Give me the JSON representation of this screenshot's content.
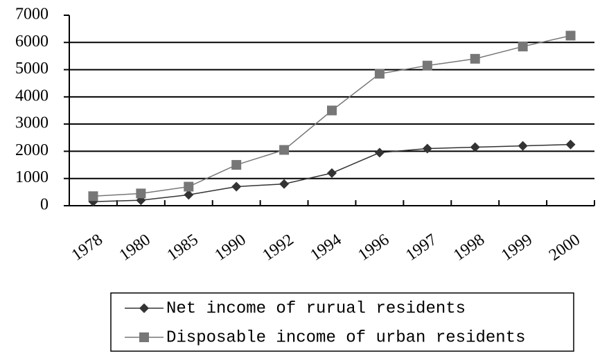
{
  "chart_data": {
    "type": "line",
    "categories": [
      "1978",
      "1980",
      "1985",
      "1990",
      "1992",
      "1994",
      "1996",
      "1997",
      "1998",
      "1999",
      "2000"
    ],
    "series": [
      {
        "name": "Net income of rurual residents",
        "color": "#333333",
        "marker": "diamond",
        "values": [
          150,
          200,
          400,
          700,
          800,
          1200,
          1950,
          2100,
          2150,
          2200,
          2250
        ]
      },
      {
        "name": "Disposable income of urban residents",
        "color": "#777777",
        "marker": "square",
        "values": [
          350,
          450,
          700,
          1500,
          2050,
          3500,
          4850,
          5150,
          5400,
          5850,
          6250
        ]
      }
    ],
    "ylim": [
      0,
      7000
    ],
    "yticks": [
      0,
      1000,
      2000,
      3000,
      4000,
      5000,
      6000,
      7000
    ],
    "grid": true,
    "legend": "bottom"
  }
}
